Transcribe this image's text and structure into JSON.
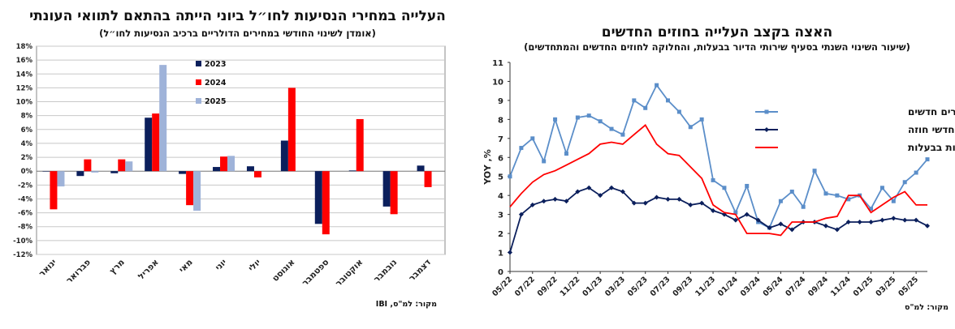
{
  "left": {
    "title": "העלייה במחירי הנסיעות לחו״ל ביוני הייתה בהתאם לתוואי העונתי",
    "subtitle": "(אומדן לשינוי החודשי במחירים הדולריים ברכיב הנסיעות לחו״ל)",
    "source": "מקור: למ\"ס, IBI",
    "chart_data": {
      "type": "bar",
      "categories": [
        "ינואר",
        "פברואר",
        "מרץ",
        "אפריל",
        "מאי",
        "יוני",
        "יולי",
        "אוגוסט",
        "ספטמבר",
        "אוקטובר",
        "נובמבר",
        "דצמבר"
      ],
      "series": [
        {
          "name": "2023",
          "color": "#0b1f5c",
          "values": [
            0,
            -0.7,
            -0.3,
            7.7,
            -0.4,
            0.6,
            0.7,
            4.4,
            -7.6,
            0.1,
            -5.1,
            0.8
          ]
        },
        {
          "name": "2024",
          "color": "#ff0000",
          "values": [
            -5.5,
            1.7,
            1.7,
            8.3,
            -4.9,
            2.1,
            -0.9,
            12.0,
            -9.1,
            7.5,
            -6.2,
            -2.3
          ]
        },
        {
          "name": "2025",
          "color": "#9fb3d9",
          "values": [
            -2.2,
            -0.2,
            1.4,
            15.3,
            -5.7,
            2.2,
            null,
            null,
            null,
            null,
            null,
            null
          ]
        }
      ],
      "y_ticks": [
        "18%",
        "16%",
        "14%",
        "12%",
        "10%",
        "8%",
        "6%",
        "4%",
        "2%",
        "0%",
        "-2%",
        "-4%",
        "-6%",
        "-8%",
        "-10%",
        "-12%"
      ],
      "ylim": [
        -12,
        18
      ],
      "legend_position": "top-center"
    }
  },
  "right": {
    "title": "האצה בקצב העלייה בחוזים החדשים",
    "subtitle": "(שיעור השינוי השנתי בסעיף שירותי הדיור בבעלות, והחלוקה לחוזים החדשים והמתחדשים)",
    "source": "מקור: למ\"ס",
    "chart_data": {
      "type": "line",
      "x": [
        "05/22",
        "06/22",
        "07/22",
        "08/22",
        "09/22",
        "10/22",
        "11/22",
        "12/22",
        "01/23",
        "02/23",
        "03/23",
        "04/23",
        "05/23",
        "06/23",
        "07/23",
        "08/23",
        "09/23",
        "10/23",
        "11/23",
        "12/23",
        "01/24",
        "02/24",
        "03/24",
        "04/24",
        "05/24",
        "06/24",
        "07/24",
        "08/24",
        "09/24",
        "10/24",
        "11/24",
        "12/24",
        "01/25",
        "02/25",
        "03/25",
        "04/25",
        "05/25",
        "06/25"
      ],
      "x_tick_labels": [
        "05/22",
        "07/22",
        "09/22",
        "11/22",
        "01/23",
        "03/23",
        "05/23",
        "07/23",
        "09/23",
        "11/23",
        "01/24",
        "03/24",
        "05/24",
        "07/24",
        "09/24",
        "11/24",
        "01/25",
        "03/25",
        "05/25"
      ],
      "ylabel": "YOY ,%",
      "y_ticks": [
        "0",
        "1",
        "2",
        "3",
        "4",
        "5",
        "6",
        "7",
        "8",
        "9",
        "10",
        "11"
      ],
      "ylim": [
        0,
        11
      ],
      "legend_position": "right-upper",
      "series": [
        {
          "name": "דיירים חדשים",
          "color": "#5b8ec9",
          "marker": "square",
          "values": [
            5.0,
            6.5,
            7.0,
            5.8,
            8.0,
            6.2,
            8.1,
            8.2,
            7.9,
            7.5,
            7.2,
            9.0,
            8.6,
            9.8,
            9.0,
            8.4,
            7.6,
            8.0,
            4.8,
            4.4,
            3.1,
            4.5,
            2.6,
            2.3,
            3.7,
            4.2,
            3.4,
            5.3,
            4.1,
            4.0,
            3.8,
            4.0,
            3.3,
            4.4,
            3.7,
            4.7,
            5.2,
            5.9
          ]
        },
        {
          "name": "מחדשי חוזה",
          "color": "#0b1f5c",
          "marker": "diamond",
          "values": [
            1.0,
            3.0,
            3.5,
            3.7,
            3.8,
            3.7,
            4.2,
            4.4,
            4.0,
            4.4,
            4.2,
            3.6,
            3.6,
            3.9,
            3.8,
            3.8,
            3.5,
            3.6,
            3.2,
            3.0,
            2.7,
            3.0,
            2.7,
            2.3,
            2.5,
            2.2,
            2.6,
            2.6,
            2.4,
            2.2,
            2.6,
            2.6,
            2.6,
            2.7,
            2.8,
            2.7,
            2.7,
            2.4
          ]
        },
        {
          "name": "שירותי הדירות בבעלות",
          "color": "#ff0000",
          "marker": "none",
          "values": [
            3.4,
            4.1,
            4.7,
            5.1,
            5.3,
            5.6,
            5.9,
            6.2,
            6.7,
            6.8,
            6.7,
            7.2,
            7.7,
            6.7,
            6.2,
            6.1,
            5.5,
            4.9,
            3.5,
            3.1,
            3.0,
            2.0,
            2.0,
            2.0,
            1.9,
            2.6,
            2.6,
            2.6,
            2.8,
            2.9,
            4.0,
            4.0,
            3.1,
            3.5,
            3.9,
            4.2,
            3.5,
            3.5
          ]
        }
      ]
    }
  }
}
